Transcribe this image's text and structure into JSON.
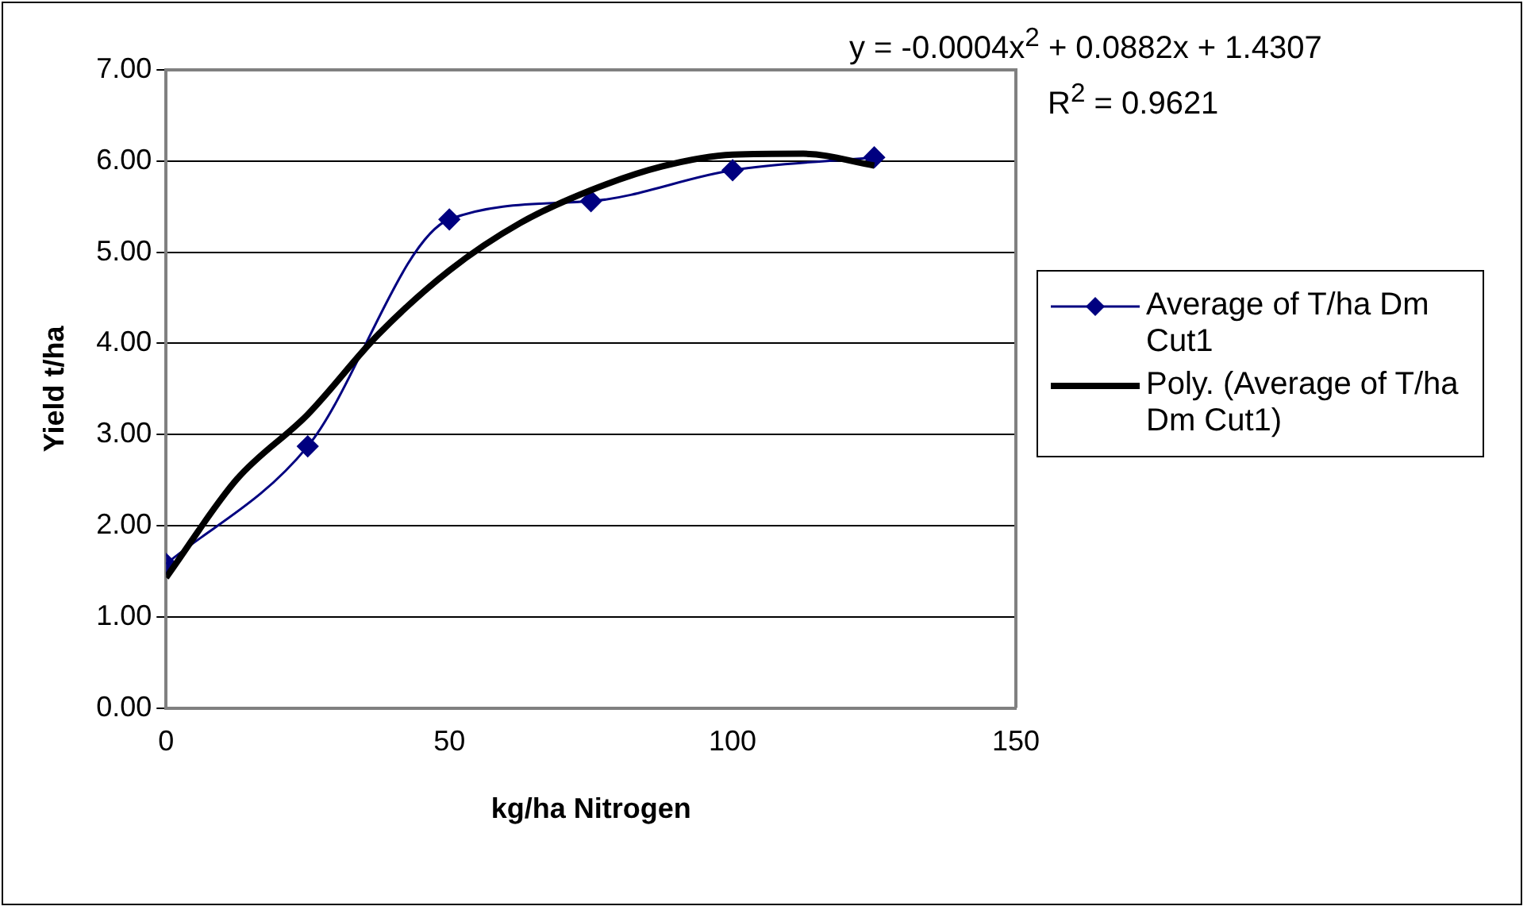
{
  "chart_data": {
    "type": "line",
    "xlabel": "kg/ha Nitrogen",
    "ylabel": "Yield t/ha",
    "annotations": [
      "y = -0.0004x$^{2}$ + 0.0882x + 1.4307",
      "R$^{2}$ = 0.9621"
    ],
    "xlim": [
      0,
      150
    ],
    "xticks": [
      0,
      50,
      100,
      150
    ],
    "ylim": [
      0,
      7
    ],
    "yticks": [
      {
        "value": 0,
        "label": "0.00"
      },
      {
        "value": 1,
        "label": "1.00"
      },
      {
        "value": 2,
        "label": "2.00"
      },
      {
        "value": 3,
        "label": "3.00"
      },
      {
        "value": 4,
        "label": "4.00"
      },
      {
        "value": 5,
        "label": "5.00"
      },
      {
        "value": 6,
        "label": "6.00"
      },
      {
        "value": 7,
        "label": "7.00"
      }
    ],
    "grid": "y",
    "legend": "right",
    "series": [
      {
        "name": "Average of T/ha Dm Cut1",
        "color": "#000080",
        "marker": "diamond",
        "x": [
          0,
          25,
          50,
          75,
          100,
          125
        ],
        "values": [
          1.58,
          2.87,
          5.36,
          5.56,
          5.9,
          6.04
        ]
      },
      {
        "name": "Poly. (Average of T/ha Dm Cut1)",
        "color": "#000000",
        "marker": "none",
        "x": [
          0,
          12.5,
          25,
          37.5,
          50,
          62.5,
          75,
          87.5,
          100,
          112.5,
          125
        ],
        "values": [
          1.43,
          2.51,
          3.22,
          4.1,
          4.8,
          5.32,
          5.68,
          5.94,
          6.07,
          6.08,
          5.95
        ]
      }
    ]
  }
}
